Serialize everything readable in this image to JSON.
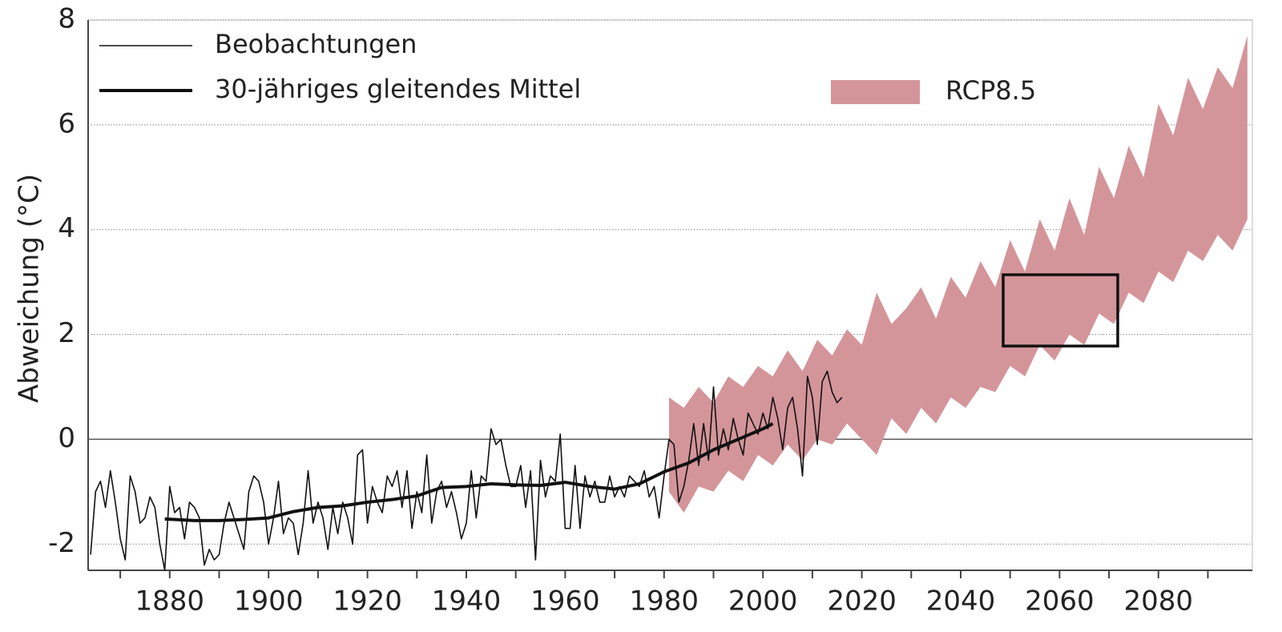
{
  "chart_data": {
    "type": "line",
    "ylabel": "Abweichung (°C)",
    "xlim": [
      1863.5,
      2099
    ],
    "ylim": [
      -2.5,
      8
    ],
    "xticks": [
      1880,
      1900,
      1920,
      1940,
      1960,
      1980,
      2000,
      2020,
      2040,
      2060,
      2080
    ],
    "xminorticks": [
      1870,
      1890,
      1910,
      1930,
      1950,
      1970,
      1990,
      2010,
      2030,
      2050,
      2070,
      2090
    ],
    "yticks": [
      -2,
      0,
      2,
      4,
      6,
      8
    ],
    "grid": true,
    "series": [
      {
        "name": "Beobachtungen",
        "color": "#111111",
        "width": 1.6,
        "x": [
          1864,
          1865,
          1866,
          1867,
          1868,
          1869,
          1870,
          1871,
          1872,
          1873,
          1874,
          1875,
          1876,
          1877,
          1878,
          1879,
          1880,
          1881,
          1882,
          1883,
          1884,
          1885,
          1886,
          1887,
          1888,
          1889,
          1890,
          1891,
          1892,
          1893,
          1894,
          1895,
          1896,
          1897,
          1898,
          1899,
          1900,
          1901,
          1902,
          1903,
          1904,
          1905,
          1906,
          1907,
          1908,
          1909,
          1910,
          1911,
          1912,
          1913,
          1914,
          1915,
          1916,
          1917,
          1918,
          1919,
          1920,
          1921,
          1922,
          1923,
          1924,
          1925,
          1926,
          1927,
          1928,
          1929,
          1930,
          1931,
          1932,
          1933,
          1934,
          1935,
          1936,
          1937,
          1938,
          1939,
          1940,
          1941,
          1942,
          1943,
          1944,
          1945,
          1946,
          1947,
          1948,
          1949,
          1950,
          1951,
          1952,
          1953,
          1954,
          1955,
          1956,
          1957,
          1958,
          1959,
          1960,
          1961,
          1962,
          1963,
          1964,
          1965,
          1966,
          1967,
          1968,
          1969,
          1970,
          1971,
          1972,
          1973,
          1974,
          1975,
          1976,
          1977,
          1978,
          1979,
          1980,
          1981,
          1982,
          1983,
          1984,
          1985,
          1986,
          1987,
          1988,
          1989,
          1990,
          1991,
          1992,
          1993,
          1994,
          1995,
          1996,
          1997,
          1998,
          1999,
          2000,
          2001,
          2002,
          2003,
          2004,
          2005,
          2006,
          2007,
          2008,
          2009,
          2010,
          2011,
          2012,
          2013,
          2014,
          2015,
          2016
        ],
        "values": [
          -2.2,
          -1.0,
          -0.8,
          -1.3,
          -0.6,
          -1.2,
          -1.9,
          -2.3,
          -0.7,
          -1.0,
          -1.6,
          -1.5,
          -1.1,
          -1.3,
          -2.0,
          -2.5,
          -0.9,
          -1.4,
          -1.3,
          -1.9,
          -1.2,
          -1.3,
          -1.5,
          -2.4,
          -2.1,
          -2.3,
          -2.2,
          -1.6,
          -1.2,
          -1.5,
          -1.8,
          -2.1,
          -1.0,
          -0.7,
          -0.8,
          -1.2,
          -2.0,
          -1.5,
          -0.8,
          -1.8,
          -1.5,
          -1.6,
          -2.2,
          -1.6,
          -0.6,
          -1.6,
          -1.2,
          -1.5,
          -2.1,
          -1.3,
          -1.8,
          -1.2,
          -1.5,
          -2.0,
          -0.3,
          -0.2,
          -1.6,
          -0.9,
          -1.2,
          -1.4,
          -0.7,
          -0.9,
          -0.6,
          -1.3,
          -0.6,
          -1.7,
          -1.0,
          -1.4,
          -0.3,
          -1.6,
          -1.0,
          -0.8,
          -1.3,
          -1.0,
          -1.4,
          -1.9,
          -1.6,
          -0.6,
          -1.5,
          -0.7,
          -0.8,
          0.2,
          -0.1,
          0.0,
          -0.5,
          -0.9,
          -0.9,
          -0.5,
          -1.3,
          -0.6,
          -2.3,
          -0.4,
          -1.1,
          -0.7,
          -0.8,
          0.1,
          -1.7,
          -1.7,
          -0.5,
          -1.7,
          -0.7,
          -1.1,
          -0.8,
          -1.2,
          -1.2,
          -0.7,
          -1.1,
          -0.9,
          -1.1,
          -0.7,
          -0.8,
          -0.9,
          -0.6,
          -1.1,
          -0.9,
          -1.5,
          -0.7,
          0.0,
          -0.1,
          -1.2,
          -0.9,
          -0.4,
          0.3,
          -0.5,
          0.3,
          -0.4,
          1.0,
          -0.3,
          0.2,
          -0.2,
          0.4,
          0.0,
          -0.3,
          0.5,
          0.3,
          0.1,
          0.5,
          0.2,
          0.8,
          0.4,
          -0.2,
          0.6,
          0.8,
          0.2,
          -0.7,
          1.2,
          0.8,
          -0.1,
          1.1,
          1.3,
          0.9,
          0.7,
          0.8
        ]
      },
      {
        "name": "30-jähriges gleitendes Mittel",
        "color": "#111111",
        "width": 4,
        "x": [
          1879,
          1885,
          1890,
          1895,
          1900,
          1905,
          1910,
          1915,
          1920,
          1925,
          1930,
          1935,
          1940,
          1945,
          1950,
          1955,
          1960,
          1965,
          1970,
          1975,
          1980,
          1985,
          1990,
          1995,
          2000,
          2002
        ],
        "values": [
          -1.52,
          -1.55,
          -1.55,
          -1.53,
          -1.5,
          -1.38,
          -1.3,
          -1.27,
          -1.2,
          -1.15,
          -1.08,
          -0.92,
          -0.9,
          -0.85,
          -0.87,
          -0.88,
          -0.82,
          -0.9,
          -0.95,
          -0.85,
          -0.62,
          -0.45,
          -0.2,
          0.0,
          0.2,
          0.3
        ]
      },
      {
        "name": "RCP8.5",
        "kind": "band",
        "color": "#d4959a",
        "x": [
          1981,
          1984,
          1987,
          1990,
          1993,
          1996,
          1999,
          2002,
          2005,
          2008,
          2011,
          2014,
          2017,
          2020,
          2023,
          2026,
          2029,
          2032,
          2035,
          2038,
          2041,
          2044,
          2047,
          2050,
          2053,
          2056,
          2059,
          2062,
          2065,
          2068,
          2071,
          2074,
          2077,
          2080,
          2083,
          2086,
          2089,
          2092,
          2095,
          2098
        ],
        "low": [
          -1.0,
          -1.4,
          -0.9,
          -1.0,
          -0.6,
          -0.8,
          -0.3,
          -0.5,
          -0.1,
          -0.4,
          0.0,
          -0.1,
          0.3,
          0.0,
          -0.3,
          0.4,
          0.1,
          0.6,
          0.3,
          0.8,
          0.6,
          1.0,
          0.9,
          1.4,
          1.2,
          1.8,
          1.5,
          2.0,
          1.8,
          2.4,
          2.2,
          2.8,
          2.6,
          3.2,
          3.0,
          3.6,
          3.4,
          3.9,
          3.6,
          4.2
        ],
        "high": [
          0.8,
          0.6,
          1.0,
          0.7,
          1.2,
          1.0,
          1.4,
          1.2,
          1.7,
          1.3,
          1.9,
          1.6,
          2.1,
          1.8,
          2.8,
          2.2,
          2.5,
          2.9,
          2.3,
          3.1,
          2.7,
          3.4,
          2.9,
          3.8,
          3.2,
          4.2,
          3.6,
          4.6,
          3.9,
          5.2,
          4.6,
          5.6,
          5.0,
          6.4,
          5.8,
          6.9,
          6.3,
          7.1,
          6.7,
          7.7
        ]
      }
    ]
  }
}
